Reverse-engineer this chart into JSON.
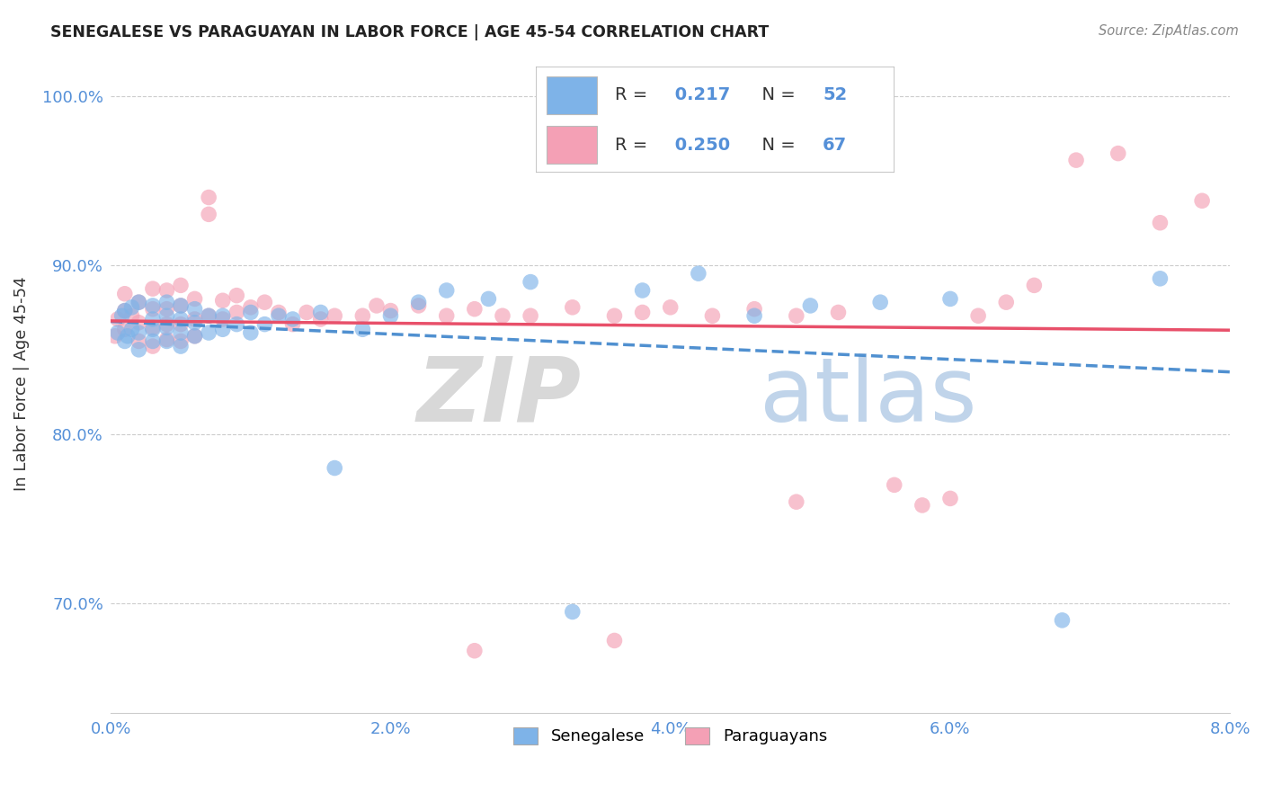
{
  "title": "SENEGALESE VS PARAGUAYAN IN LABOR FORCE | AGE 45-54 CORRELATION CHART",
  "source_text": "Source: ZipAtlas.com",
  "ylabel": "In Labor Force | Age 45-54",
  "x_min": 0.0,
  "x_max": 0.08,
  "y_min": 0.635,
  "y_max": 1.025,
  "x_ticks": [
    0.0,
    0.02,
    0.04,
    0.06,
    0.08
  ],
  "x_tick_labels": [
    "0.0%",
    "2.0%",
    "4.0%",
    "6.0%",
    "8.0%"
  ],
  "y_ticks": [
    0.7,
    0.8,
    0.9,
    1.0
  ],
  "y_tick_labels": [
    "70.0%",
    "80.0%",
    "90.0%",
    "100.0%"
  ],
  "legend_r_blue": "0.217",
  "legend_n_blue": "52",
  "legend_r_pink": "0.250",
  "legend_n_pink": "67",
  "blue_color": "#7eb3e8",
  "pink_color": "#f4a0b5",
  "blue_line_color": "#5090d0",
  "pink_line_color": "#e8506a",
  "senegalese_x": [
    0.0005,
    0.0008,
    0.001,
    0.001,
    0.0012,
    0.0015,
    0.0015,
    0.002,
    0.002,
    0.002,
    0.003,
    0.003,
    0.003,
    0.003,
    0.004,
    0.004,
    0.004,
    0.004,
    0.005,
    0.005,
    0.005,
    0.005,
    0.006,
    0.006,
    0.006,
    0.007,
    0.007,
    0.008,
    0.008,
    0.009,
    0.01,
    0.01,
    0.011,
    0.012,
    0.013,
    0.015,
    0.016,
    0.018,
    0.02,
    0.022,
    0.024,
    0.027,
    0.03,
    0.033,
    0.038,
    0.042,
    0.046,
    0.05,
    0.055,
    0.06,
    0.068,
    0.075
  ],
  "senegalese_y": [
    0.86,
    0.87,
    0.855,
    0.873,
    0.858,
    0.862,
    0.875,
    0.85,
    0.86,
    0.878,
    0.855,
    0.862,
    0.868,
    0.876,
    0.855,
    0.863,
    0.87,
    0.878,
    0.852,
    0.86,
    0.868,
    0.876,
    0.858,
    0.866,
    0.874,
    0.86,
    0.87,
    0.862,
    0.87,
    0.865,
    0.86,
    0.872,
    0.865,
    0.87,
    0.868,
    0.872,
    0.78,
    0.862,
    0.87,
    0.878,
    0.885,
    0.88,
    0.89,
    0.695,
    0.885,
    0.895,
    0.87,
    0.876,
    0.878,
    0.88,
    0.69,
    0.892
  ],
  "paraguayan_x": [
    0.0003,
    0.0005,
    0.001,
    0.001,
    0.001,
    0.0015,
    0.002,
    0.002,
    0.002,
    0.003,
    0.003,
    0.003,
    0.003,
    0.004,
    0.004,
    0.004,
    0.004,
    0.005,
    0.005,
    0.005,
    0.005,
    0.006,
    0.006,
    0.006,
    0.007,
    0.007,
    0.007,
    0.008,
    0.008,
    0.009,
    0.009,
    0.01,
    0.011,
    0.012,
    0.013,
    0.014,
    0.015,
    0.016,
    0.018,
    0.019,
    0.02,
    0.022,
    0.024,
    0.026,
    0.028,
    0.03,
    0.033,
    0.036,
    0.038,
    0.04,
    0.043,
    0.046,
    0.049,
    0.052,
    0.056,
    0.058,
    0.06,
    0.062,
    0.064,
    0.066,
    0.069,
    0.072,
    0.075,
    0.078,
    0.049,
    0.036,
    0.026
  ],
  "paraguayan_y": [
    0.858,
    0.868,
    0.862,
    0.873,
    0.883,
    0.87,
    0.855,
    0.866,
    0.878,
    0.852,
    0.863,
    0.874,
    0.886,
    0.856,
    0.865,
    0.874,
    0.885,
    0.855,
    0.865,
    0.876,
    0.888,
    0.858,
    0.868,
    0.88,
    0.93,
    0.94,
    0.87,
    0.868,
    0.879,
    0.872,
    0.882,
    0.875,
    0.878,
    0.872,
    0.865,
    0.872,
    0.868,
    0.87,
    0.87,
    0.876,
    0.873,
    0.876,
    0.87,
    0.874,
    0.87,
    0.87,
    0.875,
    0.87,
    0.872,
    0.875,
    0.87,
    0.874,
    0.87,
    0.872,
    0.77,
    0.758,
    0.762,
    0.87,
    0.878,
    0.888,
    0.962,
    0.966,
    0.925,
    0.938,
    0.76,
    0.678,
    0.672
  ]
}
